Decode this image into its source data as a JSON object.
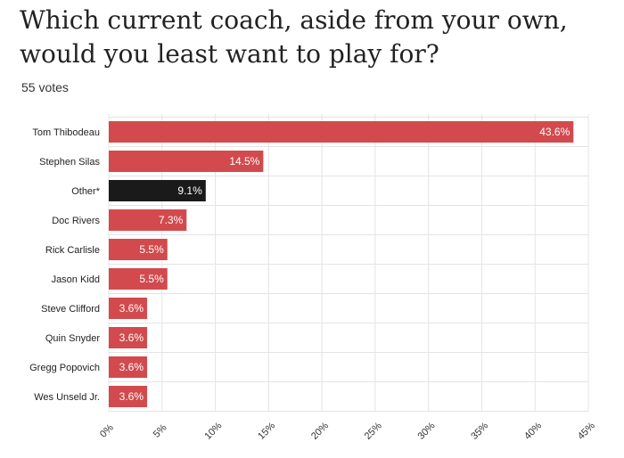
{
  "header": {
    "title": "Which current coach, aside from your own, would you least want to play for?",
    "votes": "55 votes"
  },
  "colors": {
    "bar": "#d24a4d",
    "highlight": "#1a1a1a"
  },
  "chart_data": {
    "type": "bar",
    "orientation": "horizontal",
    "title": "Which current coach, aside from your own, would you least want to play for?",
    "subtitle": "55 votes",
    "categories": [
      "Tom Thibodeau",
      "Stephen Silas",
      "Other*",
      "Doc Rivers",
      "Rick Carlisle",
      "Jason Kidd",
      "Steve Clifford",
      "Quin Snyder",
      "Gregg Popovich",
      "Wes Unseld Jr."
    ],
    "values": [
      43.6,
      14.5,
      9.1,
      7.3,
      5.5,
      5.5,
      3.6,
      3.6,
      3.6,
      3.6
    ],
    "value_labels": [
      "43.6%",
      "14.5%",
      "9.1%",
      "7.3%",
      "5.5%",
      "5.5%",
      "3.6%",
      "3.6%",
      "3.6%",
      "3.6%"
    ],
    "highlight_category": "Other*",
    "xlim": [
      0,
      45
    ],
    "xticks": [
      0,
      5,
      10,
      15,
      20,
      25,
      30,
      35,
      40,
      45
    ],
    "xtick_labels": [
      "0%",
      "5%",
      "10%",
      "15%",
      "20%",
      "25%",
      "30%",
      "35%",
      "40%",
      "45%"
    ],
    "grid": true,
    "xlabel": "",
    "ylabel": ""
  }
}
